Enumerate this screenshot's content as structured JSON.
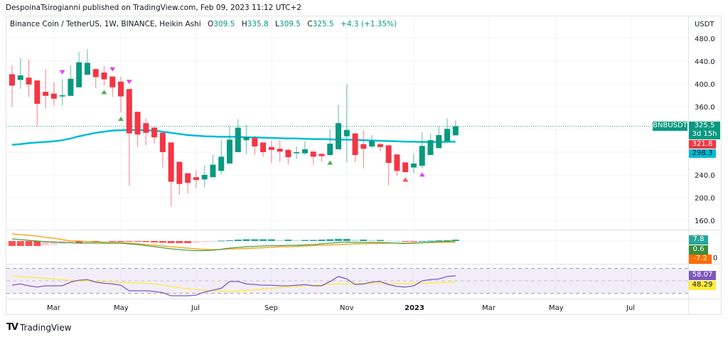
{
  "header": {
    "published": "DespoinaTsirogianni published on TradingView.com, Feb 09, 2023 11:12 UTC+2"
  },
  "legend": {
    "symbol": "Binance Coin / TetherUS, 1W, BINANCE, Heikin Ashi",
    "o_label": "O",
    "o_value": "309.5",
    "h_label": "H",
    "h_value": "335.8",
    "l_label": "L",
    "l_value": "309.5",
    "c_label": "C",
    "c_value": "325.5",
    "change": "+4.3 (+1.35%)"
  },
  "price_axis": {
    "currency": "USDT",
    "ticks": [
      "480.0",
      "440.0",
      "400.0",
      "360.0",
      "240.0",
      "200.0",
      "160.0"
    ],
    "symbol_tag": "BNBUSDT",
    "last_price": "325.5",
    "countdown": "3d 15h",
    "tag_red": "321.8",
    "tag_ema": "298.3"
  },
  "macd_axis": {
    "hist": "7.8",
    "macd": "0.6",
    "signal": "-7.2",
    "zero": "0"
  },
  "rsi_axis": {
    "rsi": "58.07",
    "ma": "48.29"
  },
  "time_axis": {
    "ticks": [
      "Mar",
      "May",
      "Jul",
      "Sep",
      "Nov",
      "2023",
      "Mar",
      "May",
      "Jul"
    ]
  },
  "footer": {
    "brand": "TradingView"
  },
  "colors": {
    "up": "#089981",
    "down": "#f23645",
    "ema": "#00bcd4",
    "macd": "#43a047",
    "signal": "#ff9800",
    "rsi": "#7e57c2",
    "rsi_ma": "#ffeb3b",
    "marker_down": "#e040fb",
    "marker_up_green": "#4caf50",
    "marker_up_red": "#ff5252",
    "marker_up_magenta": "#e040fb"
  },
  "chart_data": {
    "type": "candlestick",
    "style": "Heikin Ashi",
    "interval": "1W",
    "ylim": [
      140,
      490
    ],
    "ohlc": [
      [
        417,
        432,
        360,
        397
      ],
      [
        407,
        446,
        391,
        415
      ],
      [
        411,
        443,
        377,
        399
      ],
      [
        406,
        406,
        326,
        365
      ],
      [
        386,
        426,
        357,
        379
      ],
      [
        383,
        403,
        362,
        374
      ],
      [
        378,
        408,
        362,
        380
      ],
      [
        379,
        433,
        379,
        409
      ],
      [
        394,
        456,
        394,
        438
      ],
      [
        416,
        461,
        416,
        437
      ],
      [
        426,
        427,
        393,
        412
      ],
      [
        420,
        432,
        397,
        408
      ],
      [
        413,
        413,
        377,
        394
      ],
      [
        404,
        413,
        350,
        378
      ],
      [
        391,
        391,
        221,
        313
      ],
      [
        351,
        351,
        289,
        311
      ],
      [
        331,
        339,
        292,
        314
      ],
      [
        323,
        325,
        295,
        306
      ],
      [
        314,
        314,
        253,
        280
      ],
      [
        297,
        297,
        185,
        228
      ],
      [
        263,
        263,
        205,
        224
      ],
      [
        243,
        243,
        207,
        226
      ],
      [
        236,
        248,
        217,
        231
      ],
      [
        232,
        257,
        218,
        240
      ],
      [
        236,
        276,
        236,
        258
      ],
      [
        247,
        302,
        242,
        272
      ],
      [
        260,
        326,
        260,
        302
      ],
      [
        280,
        338,
        280,
        323
      ],
      [
        301,
        328,
        276,
        307
      ],
      [
        305,
        309,
        275,
        290
      ],
      [
        297,
        297,
        272,
        280
      ],
      [
        289,
        300,
        261,
        284
      ],
      [
        286,
        301,
        263,
        281
      ],
      [
        284,
        286,
        258,
        271
      ],
      [
        278,
        290,
        268,
        280
      ],
      [
        278,
        299,
        275,
        285
      ],
      [
        281,
        281,
        258,
        272
      ],
      [
        277,
        277,
        263,
        273
      ],
      [
        275,
        320,
        273,
        295
      ],
      [
        285,
        363,
        285,
        331
      ],
      [
        308,
        399,
        262,
        319
      ],
      [
        313,
        313,
        263,
        275
      ],
      [
        294,
        319,
        251,
        286
      ],
      [
        290,
        310,
        287,
        300
      ],
      [
        294,
        297,
        282,
        289
      ],
      [
        292,
        292,
        222,
        261
      ],
      [
        276,
        276,
        238,
        247
      ],
      [
        262,
        262,
        243,
        245
      ],
      [
        253,
        277,
        243,
        260
      ],
      [
        256,
        315,
        252,
        291
      ],
      [
        275,
        312,
        275,
        301
      ],
      [
        287,
        325,
        287,
        310
      ],
      [
        299,
        339,
        299,
        321
      ],
      [
        309.5,
        335.8,
        309.5,
        325.5
      ]
    ],
    "ema": [
      293,
      294,
      296,
      297,
      298,
      299,
      301,
      304,
      308,
      311,
      314,
      316,
      318,
      318.5,
      319,
      319,
      318.5,
      318,
      316,
      314,
      312,
      310,
      309,
      308,
      307.5,
      307,
      307,
      307,
      306,
      306,
      305.5,
      305,
      304.5,
      304,
      304,
      303.5,
      303,
      303,
      302.5,
      302,
      302,
      301.5,
      301,
      300.5,
      300,
      299.5,
      299,
      298.5,
      298.3,
      298,
      298,
      298,
      298.2,
      298.3
    ],
    "last_price_line": 325.5,
    "markers": [
      {
        "bar": 6,
        "type": "down",
        "color": "marker_down"
      },
      {
        "bar": 12,
        "type": "down",
        "color": "marker_down"
      },
      {
        "bar": 14,
        "type": "down",
        "color": "marker_down"
      },
      {
        "bar": 11,
        "type": "up",
        "color": "marker_up_green"
      },
      {
        "bar": 13,
        "type": "up",
        "color": "marker_up_green"
      },
      {
        "bar": 38,
        "type": "up",
        "color": "marker_up_green"
      },
      {
        "bar": 47,
        "type": "up",
        "color": "marker_up_red"
      },
      {
        "bar": 49,
        "type": "up",
        "color": "marker_up_magenta"
      }
    ],
    "macd": {
      "macd": [
        12,
        8,
        4,
        0,
        -4,
        -6,
        -8,
        -10,
        -12,
        -12,
        -12,
        -12,
        -12,
        -12,
        -16,
        -20,
        -26,
        -32,
        -38,
        -44,
        -48,
        -52,
        -54,
        -54,
        -52,
        -46,
        -40,
        -36,
        -32,
        -30,
        -28,
        -26,
        -26,
        -24,
        -24,
        -22,
        -20,
        -16,
        -12,
        -8,
        -6,
        -8,
        -8,
        -8,
        -8,
        -10,
        -12,
        -14,
        -12,
        -10,
        -6,
        -4,
        -2,
        0.6
      ],
      "signal": [
        40,
        36,
        32,
        28,
        20,
        16,
        8,
        0,
        0,
        -4,
        -4,
        -8,
        -8,
        -8,
        -12,
        -16,
        -20,
        -24,
        -28,
        -32,
        -36,
        -40,
        -44,
        -48,
        -48,
        -48,
        -44,
        -44,
        -42,
        -40,
        -38,
        -36,
        -32,
        -32,
        -30,
        -28,
        -26,
        -24,
        -22,
        -20,
        -18,
        -16,
        -16,
        -14,
        -14,
        -12,
        -12,
        -12,
        -10,
        -10,
        -8,
        -8,
        -6,
        -7.2
      ]
    },
    "rsi": {
      "rsi": [
        43,
        45,
        42,
        40,
        42,
        42,
        42,
        48,
        51,
        52,
        48,
        46,
        45,
        43,
        34,
        34,
        34,
        33,
        31,
        26,
        26,
        26,
        27,
        32,
        35,
        38,
        49,
        49,
        45,
        44,
        43,
        43,
        42,
        42,
        43,
        44,
        42,
        42,
        49,
        57,
        53,
        44,
        45,
        48,
        49,
        44,
        41,
        40,
        42,
        50,
        52,
        53,
        57,
        58.07
      ],
      "ma": [
        58,
        57,
        56,
        55,
        54,
        53,
        52,
        51,
        50,
        49.5,
        49,
        48.5,
        48,
        47.5,
        47,
        46.5,
        46,
        45,
        43,
        41,
        39,
        37,
        36,
        35,
        34,
        33.5,
        33,
        33.5,
        34.5,
        35.5,
        37,
        38,
        39,
        40,
        41,
        42,
        43,
        44,
        44.5,
        45,
        45,
        45.5,
        45.5,
        45.5,
        45.5,
        45.5,
        45.5,
        45.5,
        45.5,
        46,
        46.5,
        47,
        47.5,
        48.29
      ],
      "levels": [
        70,
        50,
        30
      ]
    }
  }
}
